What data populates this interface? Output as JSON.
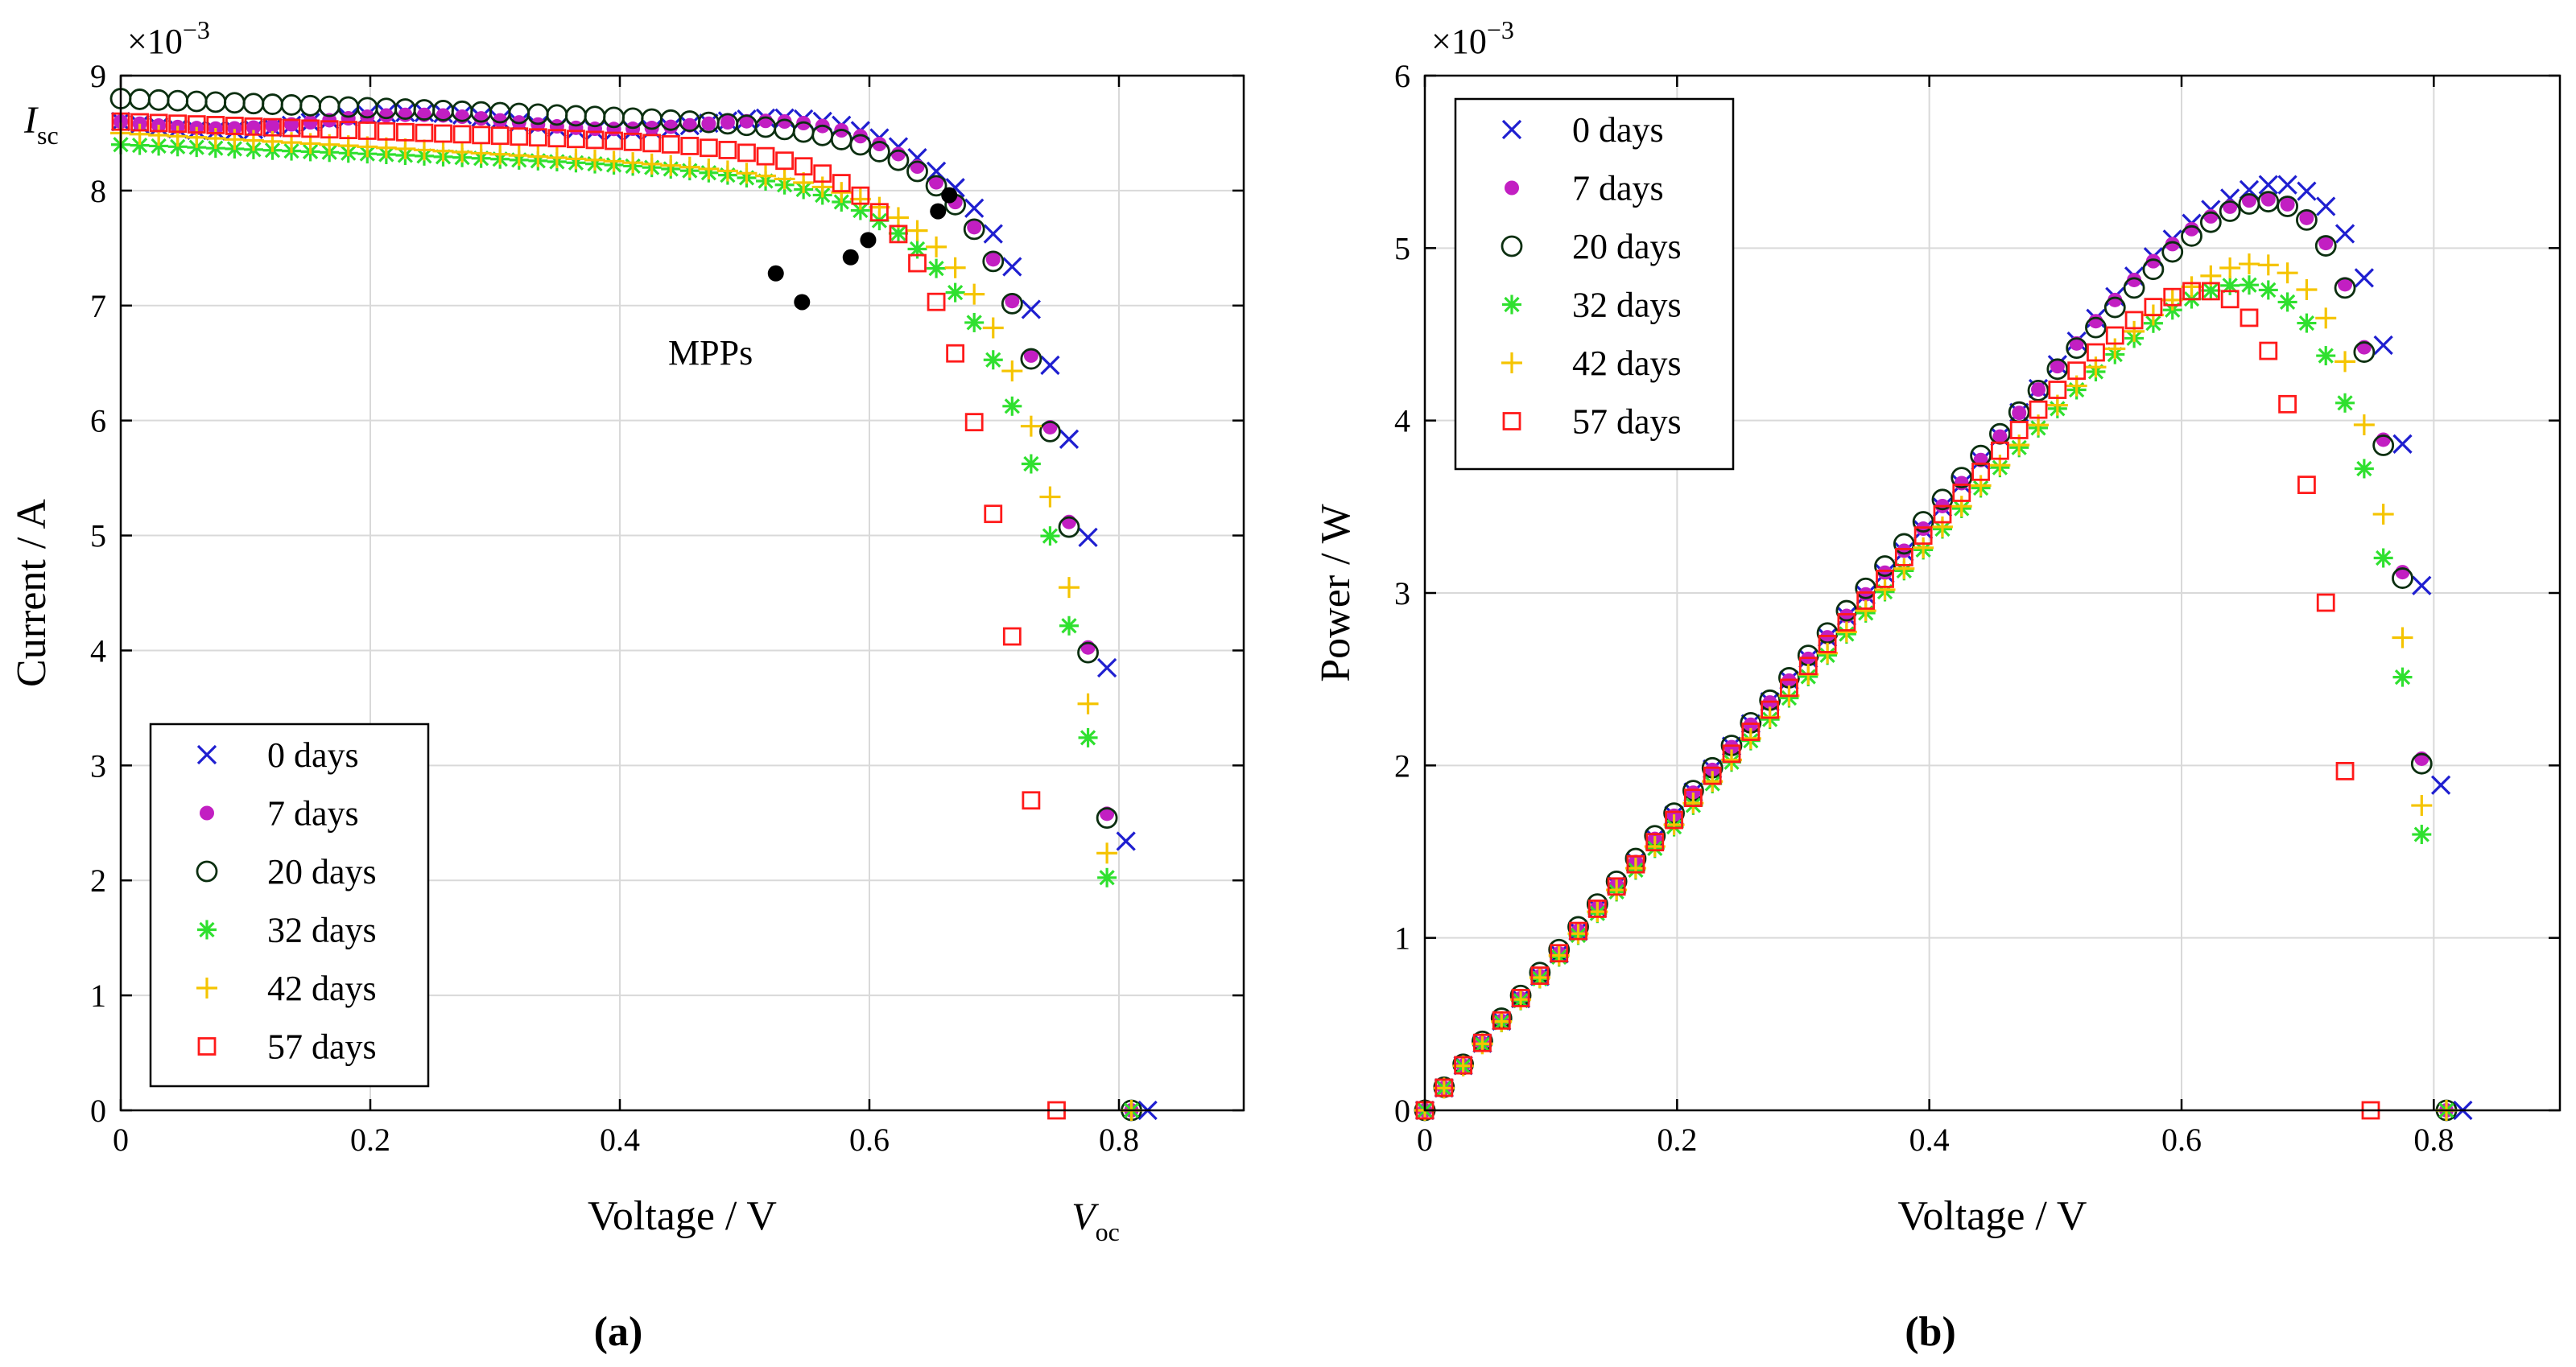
{
  "figure": {
    "panel_a_label": "(a)",
    "panel_b_label": "(b)"
  },
  "chart_data": [
    {
      "type": "scatter",
      "panel": "a",
      "xlabel": "Voltage / V",
      "ylabel": "Current / A",
      "xlim": [
        0,
        0.9
      ],
      "ylim": [
        0,
        0.009
      ],
      "xticks": [
        0,
        0.2,
        0.4,
        0.6,
        0.8
      ],
      "xtick_labels": [
        "0",
        "0.2",
        "0.4",
        "0.6",
        "0.8"
      ],
      "yticks": [
        0,
        0.001,
        0.002,
        0.003,
        0.004,
        0.005,
        0.006,
        0.007,
        0.008,
        0.009
      ],
      "ytick_labels": [
        "0",
        "1",
        "2",
        "3",
        "4",
        "5",
        "6",
        "7",
        "8",
        "9"
      ],
      "y_multiplier": "×10",
      "y_multiplier_exp": "−3",
      "grid": true,
      "legend_position": "bottom-left",
      "annotations": {
        "isc_main": "I",
        "isc_sub": "sc",
        "voc_main": "V",
        "voc_sub": "oc",
        "mpps": "MPPs",
        "isc_value": 0.0086,
        "voc_value": 0.775
      },
      "mpp_points": [
        [
          0.664,
          0.00796
        ],
        [
          0.655,
          0.00782
        ],
        [
          0.599,
          0.00757
        ],
        [
          0.585,
          0.00742
        ],
        [
          0.546,
          0.00703
        ],
        [
          0.525,
          0.00728
        ]
      ],
      "series": [
        {
          "name": "0 days",
          "marker": "x",
          "color": "#1f1fd0",
          "voc": 0.823,
          "x": [],
          "y": []
        },
        {
          "name": "7 days",
          "marker": "dot",
          "color": "#c21fc2",
          "voc": 0.81,
          "x": [],
          "y": []
        },
        {
          "name": "20 days",
          "marker": "circle",
          "color": "#0b2f10",
          "voc": 0.81,
          "x": [],
          "y": []
        },
        {
          "name": "32 days",
          "marker": "star",
          "color": "#2fe02f",
          "voc": 0.81,
          "x": [],
          "y": []
        },
        {
          "name": "42 days",
          "marker": "plus",
          "color": "#f5c400",
          "voc": 0.81,
          "x": [],
          "y": []
        },
        {
          "name": "57 days",
          "marker": "square",
          "color": "#ff1a1a",
          "voc": 0.75,
          "x": [],
          "y": []
        }
      ]
    },
    {
      "type": "scatter",
      "panel": "b",
      "xlabel": "Voltage / V",
      "ylabel": "Power / W",
      "xlim": [
        0,
        0.9
      ],
      "ylim": [
        0,
        0.006
      ],
      "xticks": [
        0,
        0.2,
        0.4,
        0.6,
        0.8
      ],
      "xtick_labels": [
        "0",
        "0.2",
        "0.4",
        "0.6",
        "0.8"
      ],
      "yticks": [
        0,
        0.001,
        0.002,
        0.003,
        0.004,
        0.005,
        0.006
      ],
      "ytick_labels": [
        "0",
        "1",
        "2",
        "3",
        "4",
        "5",
        "6"
      ],
      "y_multiplier": "×10",
      "y_multiplier_exp": "−3",
      "grid": true,
      "legend_position": "top-left",
      "series": [
        {
          "name": "0 days",
          "marker": "x",
          "color": "#1f1fd0",
          "x": [],
          "y": []
        },
        {
          "name": "7 days",
          "marker": "dot",
          "color": "#c21fc2",
          "x": [],
          "y": []
        },
        {
          "name": "20 days",
          "marker": "circle",
          "color": "#0b2f10",
          "x": [],
          "y": []
        },
        {
          "name": "32 days",
          "marker": "star",
          "color": "#2fe02f",
          "x": [],
          "y": []
        },
        {
          "name": "42 days",
          "marker": "plus",
          "color": "#f5c400",
          "x": [],
          "y": []
        },
        {
          "name": "57 days",
          "marker": "square",
          "color": "#ff1a1a",
          "x": [],
          "y": []
        }
      ]
    }
  ]
}
